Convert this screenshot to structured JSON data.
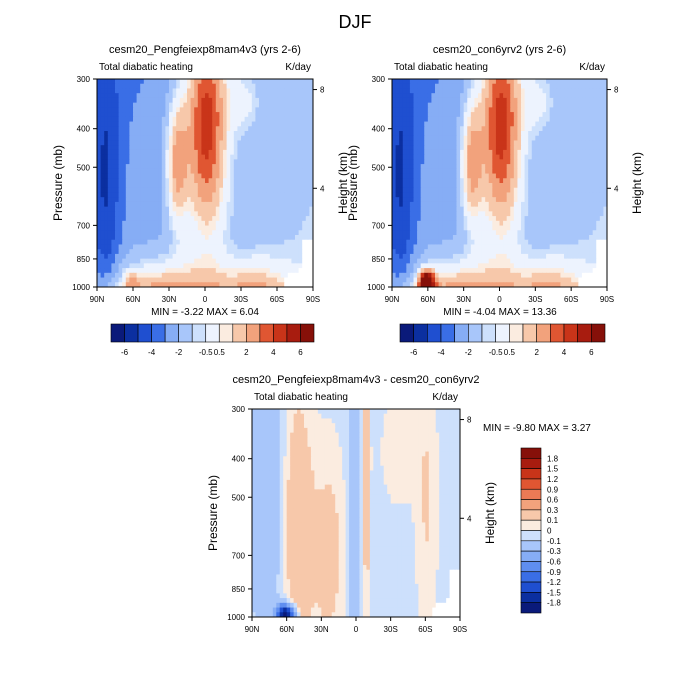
{
  "figure": {
    "title": "DJF",
    "colors": {
      "palette": [
        "#0a1a7a",
        "#0b2fa0",
        "#1f4fd0",
        "#3a6ee6",
        "#5f8ef0",
        "#86adf5",
        "#a8c6fa",
        "#cde0fc",
        "#edf3fe",
        "#fbece0",
        "#f7c8aa",
        "#f2a27c",
        "#ec7a55",
        "#e05632",
        "#c93419",
        "#a81c0f",
        "#861009"
      ],
      "land_shading": "#ffffff"
    }
  },
  "chart_data": [
    {
      "type": "heatmap",
      "title": "cesm20_Pengfeiexp8mam4v3 (yrs 2-6)",
      "left_label": "Total diabatic heating",
      "right_label": "K/day",
      "xlabel": "",
      "ylabel": "Pressure (mb)",
      "y2label": "Height (km)",
      "x_ticks": [
        "90N",
        "60N",
        "30N",
        "0",
        "30S",
        "60S",
        "90S"
      ],
      "y_ticks": [
        "300",
        "400",
        "500",
        "700",
        "850",
        "1000"
      ],
      "y2_ticks": [
        "8",
        "4"
      ],
      "xlim": [
        90,
        -90
      ],
      "ylim": [
        1000,
        300
      ],
      "min_max_text": "MIN =  -3.22  MAX =   6.04",
      "min": -3.22,
      "max": 6.04,
      "colorbar": {
        "orientation": "horizontal",
        "labels": [
          "-6",
          "-4",
          "-2",
          "-0.5",
          "0.5",
          "2",
          "4",
          "6"
        ],
        "levels": [
          -6,
          -5,
          -4,
          -3,
          -2,
          -1,
          -0.5,
          0.5,
          1,
          2,
          3,
          4,
          5,
          6
        ]
      }
    },
    {
      "type": "heatmap",
      "title": "cesm20_con6yrv2 (yrs 2-6)",
      "left_label": "Total diabatic heating",
      "right_label": "K/day",
      "xlabel": "",
      "ylabel": "Pressure (mb)",
      "y2label": "Height (km)",
      "x_ticks": [
        "90N",
        "60N",
        "30N",
        "0",
        "30S",
        "60S",
        "90S"
      ],
      "y_ticks": [
        "300",
        "400",
        "500",
        "700",
        "850",
        "1000"
      ],
      "y2_ticks": [
        "8",
        "4"
      ],
      "xlim": [
        90,
        -90
      ],
      "ylim": [
        1000,
        300
      ],
      "min_max_text": "MIN =  -4.04  MAX =  13.36",
      "min": -4.04,
      "max": 13.36,
      "colorbar": {
        "orientation": "horizontal",
        "labels": [
          "-6",
          "-4",
          "-2",
          "-0.5",
          "0.5",
          "2",
          "4",
          "6"
        ],
        "levels": [
          -6,
          -5,
          -4,
          -3,
          -2,
          -1,
          -0.5,
          0.5,
          1,
          2,
          3,
          4,
          5,
          6
        ]
      }
    },
    {
      "type": "heatmap",
      "title": "cesm20_Pengfeiexp8mam4v3 - cesm20_con6yrv2",
      "left_label": "Total diabatic heating",
      "right_label": "K/day",
      "xlabel": "",
      "ylabel": "Pressure (mb)",
      "y2label": "Height (km)",
      "x_ticks": [
        "90N",
        "60N",
        "30N",
        "0",
        "30S",
        "60S",
        "90S"
      ],
      "y_ticks": [
        "300",
        "400",
        "500",
        "700",
        "850",
        "1000"
      ],
      "y2_ticks": [
        "8",
        "4"
      ],
      "xlim": [
        90,
        -90
      ],
      "ylim": [
        1000,
        300
      ],
      "min_max_text": "MIN =  -9.80  MAX =   3.27",
      "min": -9.8,
      "max": 3.27,
      "colorbar": {
        "orientation": "vertical",
        "labels": [
          "1.8",
          "1.5",
          "1.2",
          "0.9",
          "0.6",
          "0.3",
          "0.1",
          "0",
          "-0.1",
          "-0.3",
          "-0.6",
          "-0.9",
          "-1.2",
          "-1.5",
          "-1.8"
        ],
        "levels": [
          -1.8,
          -1.5,
          -1.2,
          -0.9,
          -0.6,
          -0.3,
          -0.1,
          0,
          0.1,
          0.3,
          0.6,
          0.9,
          1.2,
          1.5,
          1.8
        ]
      }
    }
  ]
}
